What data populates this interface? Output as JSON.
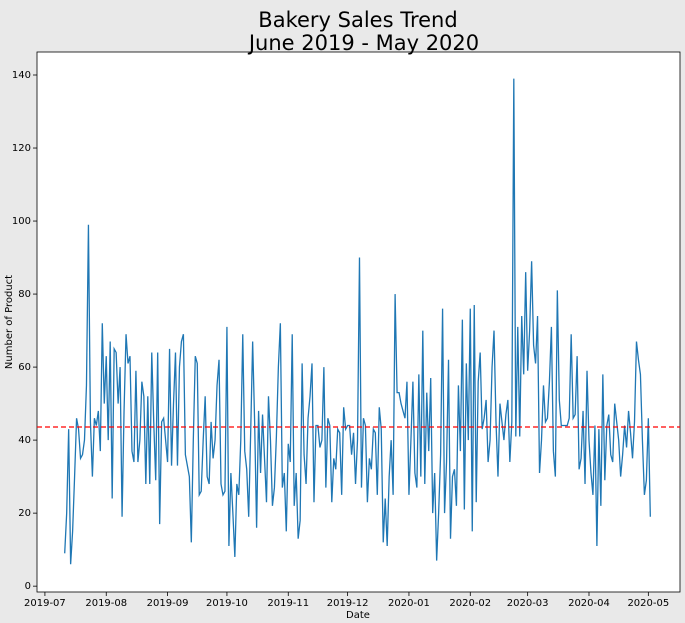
{
  "chart_data": {
    "type": "line",
    "title": "Bakery Sales Trend",
    "subtitle": "June 2019 - May 2020",
    "xlabel": "Date",
    "ylabel": "Number of Product",
    "grid": false,
    "xlim": [
      18074,
      18399
    ],
    "ylim": [
      -1.6,
      146.3
    ],
    "yticks": [
      0,
      20,
      40,
      60,
      80,
      100,
      120,
      140
    ],
    "xticks": [
      {
        "value": 18078,
        "label": "2019-07"
      },
      {
        "value": 18109,
        "label": "2019-08"
      },
      {
        "value": 18140,
        "label": "2019-09"
      },
      {
        "value": 18170,
        "label": "2019-10"
      },
      {
        "value": 18201,
        "label": "2019-11"
      },
      {
        "value": 18231,
        "label": "2019-12"
      },
      {
        "value": 18262,
        "label": "2020-01"
      },
      {
        "value": 18293,
        "label": "2020-02"
      },
      {
        "value": 18322,
        "label": "2020-03"
      },
      {
        "value": 18353,
        "label": "2020-04"
      },
      {
        "value": 18383,
        "label": "2020-05"
      }
    ],
    "hline": {
      "value": 43.6,
      "color": "#ff0000"
    },
    "x": [
      18088,
      18089,
      18090,
      18091,
      18092,
      18093,
      18094,
      18095,
      18096,
      18097,
      18098,
      18099,
      18100,
      18101,
      18102,
      18103,
      18104,
      18105,
      18106,
      18107,
      18108,
      18109,
      18110,
      18111,
      18112,
      18113,
      18114,
      18115,
      18116,
      18117,
      18118,
      18119,
      18120,
      18121,
      18122,
      18123,
      18124,
      18125,
      18126,
      18127,
      18128,
      18129,
      18130,
      18131,
      18132,
      18133,
      18134,
      18135,
      18136,
      18137,
      18138,
      18139,
      18140,
      18141,
      18142,
      18143,
      18144,
      18145,
      18146,
      18147,
      18148,
      18149,
      18150,
      18151,
      18152,
      18153,
      18154,
      18155,
      18156,
      18157,
      18158,
      18159,
      18160,
      18161,
      18162,
      18163,
      18164,
      18165,
      18166,
      18167,
      18168,
      18169,
      18170,
      18171,
      18172,
      18173,
      18174,
      18175,
      18176,
      18177,
      18178,
      18179,
      18180,
      18181,
      18182,
      18183,
      18184,
      18185,
      18186,
      18187,
      18188,
      18189,
      18190,
      18191,
      18192,
      18193,
      18194,
      18195,
      18196,
      18197,
      18198,
      18199,
      18200,
      18201,
      18202,
      18203,
      18204,
      18205,
      18206,
      18207,
      18208,
      18209,
      18210,
      18211,
      18212,
      18213,
      18214,
      18215,
      18216,
      18217,
      18218,
      18219,
      18220,
      18221,
      18222,
      18223,
      18224,
      18225,
      18226,
      18227,
      18228,
      18229,
      18230,
      18231,
      18232,
      18233,
      18234,
      18235,
      18236,
      18237,
      18238,
      18239,
      18240,
      18241,
      18242,
      18243,
      18244,
      18245,
      18246,
      18247,
      18248,
      18249,
      18250,
      18251,
      18252,
      18253,
      18254,
      18255,
      18256,
      18257,
      18258,
      18259,
      18260,
      18261,
      18262,
      18263,
      18264,
      18265,
      18266,
      18267,
      18268,
      18269,
      18270,
      18271,
      18272,
      18273,
      18274,
      18275,
      18276,
      18277,
      18278,
      18279,
      18280,
      18281,
      18282,
      18283,
      18284,
      18285,
      18286,
      18287,
      18288,
      18289,
      18290,
      18291,
      18292,
      18293,
      18294,
      18295,
      18296,
      18297,
      18298,
      18299,
      18300,
      18301,
      18302,
      18303,
      18304,
      18305,
      18306,
      18307,
      18308,
      18309,
      18310,
      18311,
      18312,
      18313,
      18314,
      18315,
      18316,
      18317,
      18318,
      18319,
      18320,
      18321,
      18322,
      18323,
      18324,
      18325,
      18326,
      18327,
      18328,
      18329,
      18330,
      18331,
      18332,
      18333,
      18334,
      18335,
      18336,
      18337,
      18338,
      18339,
      18340,
      18341,
      18342,
      18343,
      18344,
      18345,
      18346,
      18347,
      18348,
      18349,
      18350,
      18351,
      18352,
      18353,
      18354,
      18355,
      18356,
      18357,
      18358,
      18359,
      18360,
      18361,
      18362,
      18363,
      18364,
      18365,
      18366,
      18367,
      18368,
      18369,
      18370,
      18371,
      18372,
      18373,
      18374,
      18375,
      18376,
      18377,
      18378,
      18379,
      18380,
      18381,
      18382,
      18383,
      18384
    ],
    "series": [
      {
        "color": "#1f77b4",
        "values": [
          9,
          20,
          43,
          6,
          15,
          30,
          46,
          43,
          35,
          36,
          40,
          55,
          99,
          45,
          30,
          46,
          44,
          48,
          37,
          72,
          50,
          63,
          40,
          67,
          24,
          65,
          64,
          50,
          60,
          19,
          48,
          69,
          61,
          63,
          37,
          34,
          59,
          34,
          40,
          56,
          52,
          28,
          52,
          28,
          64,
          45,
          29,
          64,
          17,
          45,
          46,
          40,
          34,
          65,
          33,
          50,
          64,
          33,
          60,
          67,
          69,
          36,
          33,
          30,
          12,
          40,
          63,
          61,
          25,
          26,
          40,
          52,
          30,
          28,
          45,
          35,
          40,
          55,
          62,
          28,
          25,
          26,
          71,
          11,
          31,
          20,
          8,
          28,
          25,
          40,
          69,
          37,
          32,
          19,
          42,
          67,
          45,
          16,
          48,
          31,
          47,
          35,
          23,
          52,
          40,
          22,
          27,
          41,
          60,
          72,
          27,
          31,
          15,
          39,
          34,
          69,
          22,
          31,
          13,
          18,
          61,
          36,
          28,
          46,
          52,
          61,
          23,
          44,
          44,
          38,
          40,
          60,
          27,
          46,
          44,
          23,
          35,
          32,
          43,
          42,
          25,
          49,
          43,
          44,
          44,
          36,
          42,
          28,
          40,
          90,
          27,
          46,
          44,
          23,
          35,
          32,
          43,
          42,
          25,
          49,
          43,
          12,
          24,
          11,
          30,
          40,
          25,
          80,
          53,
          53,
          50,
          48,
          46,
          56,
          25,
          40,
          56,
          31,
          27,
          58,
          30,
          70,
          28,
          53,
          37,
          57,
          20,
          31,
          7,
          20,
          36,
          76,
          20,
          34,
          62,
          13,
          30,
          32,
          22,
          55,
          37,
          73,
          21,
          61,
          40,
          76,
          15,
          77,
          23,
          56,
          64,
          43,
          46,
          51,
          34,
          40,
          60,
          70,
          45,
          30,
          50,
          45,
          40,
          47,
          51,
          34,
          45,
          139,
          41,
          71,
          41,
          74,
          58,
          86,
          59,
          70,
          89,
          66,
          61,
          74,
          31,
          40,
          55,
          45,
          46,
          56,
          71,
          37,
          30,
          81,
          51,
          44,
          44,
          44,
          44,
          46,
          69,
          46,
          47,
          63,
          32,
          35,
          48,
          28,
          59,
          40,
          31,
          25,
          44,
          11,
          43,
          22,
          58,
          29,
          44,
          47,
          36,
          34,
          50,
          45,
          40,
          30,
          36,
          44,
          38,
          48,
          42,
          35,
          45,
          67,
          62,
          58,
          40,
          25,
          29,
          46,
          19
        ]
      }
    ]
  }
}
